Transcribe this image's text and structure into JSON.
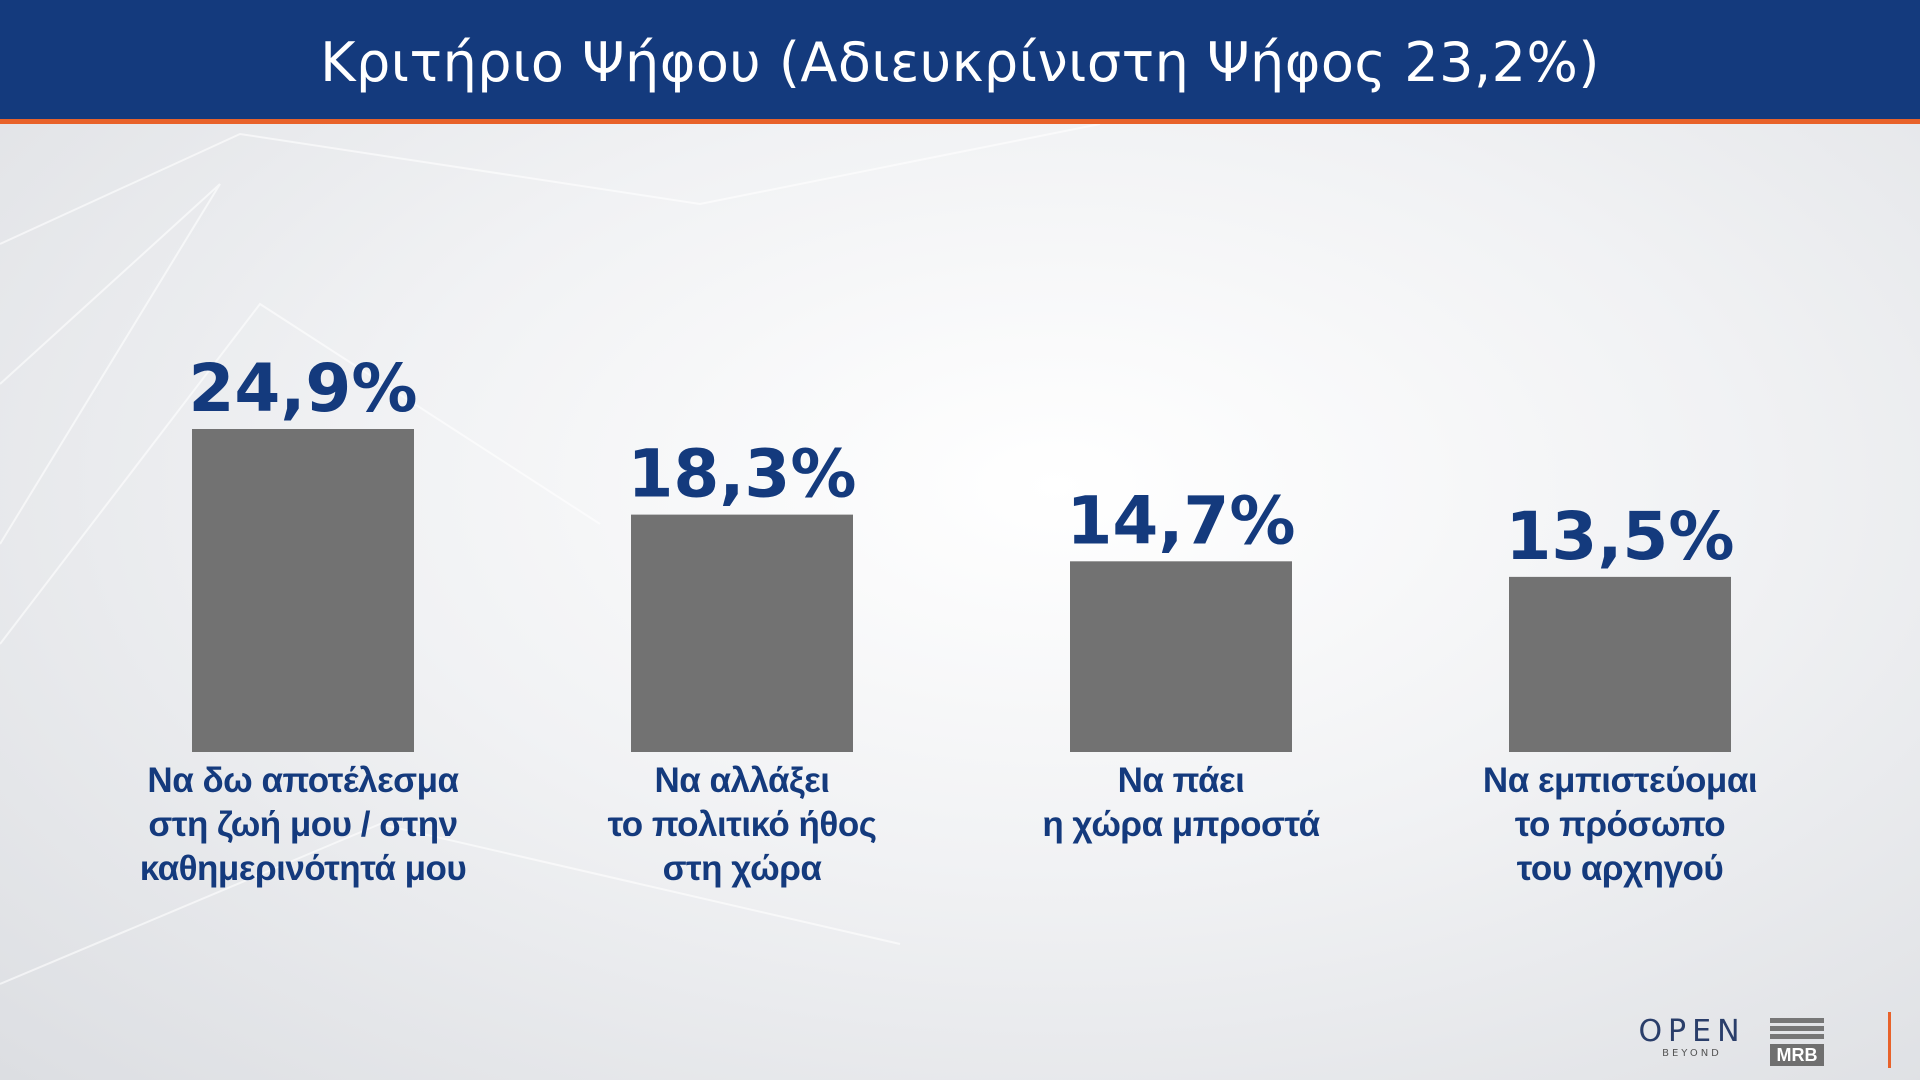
{
  "header": {
    "title": "Κριτήριο Ψήφου (Αδιευκρίνιστη Ψήφος 23,2%)"
  },
  "colors": {
    "header_bg": "#143a7d",
    "accent": "#e8622a",
    "bar": "#727272",
    "text": "#143a7d"
  },
  "chart_data": {
    "type": "bar",
    "title": "Κριτήριο Ψήφου (Αδιευκρίνιστη Ψήφος 23,2%)",
    "categories": [
      [
        "Να δω αποτέλεσμα",
        "στη ζωή μου / στην",
        "καθημερινότητά μου"
      ],
      [
        "Να αλλάξει",
        "το πολιτικό ήθος",
        "στη χώρα"
      ],
      [
        "Να πάει",
        "η χώρα μπροστά"
      ],
      [
        "Να εμπιστεύομαι",
        "το πρόσωπο",
        "του αρχηγού"
      ]
    ],
    "values": [
      24.9,
      18.3,
      14.7,
      13.5
    ],
    "value_labels": [
      "24,9%",
      "18,3%",
      "14,7%",
      "13,5%"
    ],
    "grid": false,
    "legend": "none"
  },
  "logos": {
    "open": "OPEN",
    "open_sub": "BEYOND",
    "mrb": "MRB"
  }
}
